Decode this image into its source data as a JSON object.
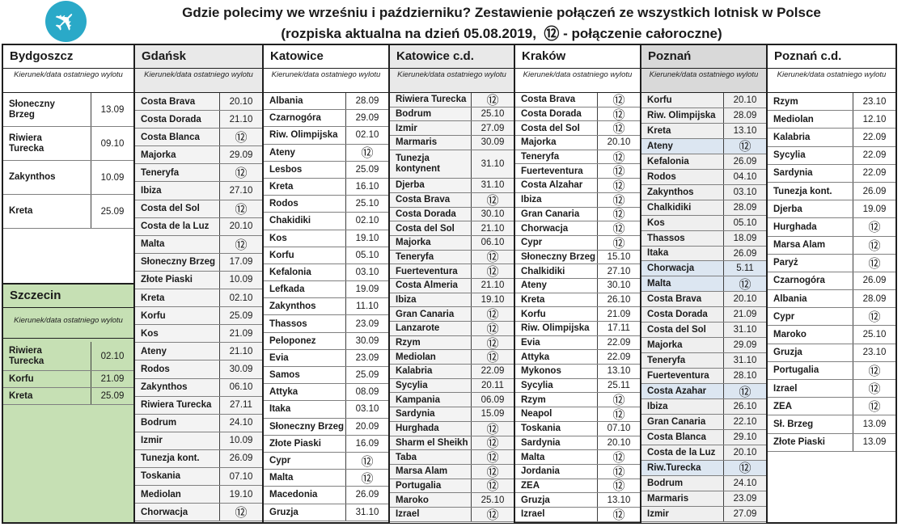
{
  "title": {
    "line1": "Gdzie polecimy we wrześniu i październiku? Zestawienie połączeń ze wszystkich lotnisk w Polsce",
    "line2_before": "(rozpiska aktualna na dzień 05.08.2019,",
    "line2_symbol": "⑫",
    "line2_after": "- połączenie całoroczne)"
  },
  "labels": {
    "subheader": "Kierunek/data ostatniego wylotu",
    "year_round_symbol": "⑫"
  },
  "icons": {
    "airplane": "✈"
  },
  "colors": {
    "badge_teal": "#2aa9c8",
    "szczecin_green": "#c6e0b4",
    "poznan_grey": "#d9d9d9",
    "light_grey": "#e9e9e9",
    "highlight_blue": "#dce6f1"
  },
  "columns": [
    {
      "id": "bydgoszcz-szczecin",
      "sections": [
        {
          "id": "bydgoszcz",
          "city": "Bydgoszcz",
          "variant": "white",
          "rows": [
            {
              "dest": "Słoneczny Brzeg",
              "date": "13.09"
            },
            {
              "dest": "Riwiera Turecka",
              "date": "09.10"
            },
            {
              "dest": "Zakynthos",
              "date": "10.09"
            },
            {
              "dest": "Kreta",
              "date": "25.09"
            }
          ]
        },
        {
          "id": "szczecin",
          "city": "Szczecin",
          "variant": "green",
          "rows": [
            {
              "dest": "Riwiera Turecka",
              "date": "02.10",
              "tall": true
            },
            {
              "dest": "Korfu",
              "date": "21.09"
            },
            {
              "dest": "Kreta",
              "date": "25.09"
            }
          ]
        }
      ]
    },
    {
      "id": "gdansk",
      "sections": [
        {
          "id": "gdansk",
          "city": "Gdańsk",
          "variant": "greylight",
          "rows": [
            {
              "dest": "Costa Brava",
              "date": "20.10"
            },
            {
              "dest": "Costa Dorada",
              "date": "21.10"
            },
            {
              "dest": "Costa Blanca",
              "date": "⑫"
            },
            {
              "dest": "Majorka",
              "date": "29.09"
            },
            {
              "dest": "Teneryfa",
              "date": "⑫"
            },
            {
              "dest": "Ibiza",
              "date": "27.10"
            },
            {
              "dest": "Costa del Sol",
              "date": "⑫"
            },
            {
              "dest": "Costa de la Luz",
              "date": "20.10"
            },
            {
              "dest": "Malta",
              "date": "⑫"
            },
            {
              "dest": "Słoneczny Brzeg",
              "date": "17.09"
            },
            {
              "dest": "Złote Piaski",
              "date": "10.09"
            },
            {
              "dest": "Kreta",
              "date": "02.10"
            },
            {
              "dest": "Korfu",
              "date": "25.09"
            },
            {
              "dest": "Kos",
              "date": "21.09"
            },
            {
              "dest": "Ateny",
              "date": "21.10"
            },
            {
              "dest": "Rodos",
              "date": "30.09"
            },
            {
              "dest": "Zakynthos",
              "date": "06.10"
            },
            {
              "dest": "Riwiera Turecka",
              "date": "27.11"
            },
            {
              "dest": "Bodrum",
              "date": "24.10"
            },
            {
              "dest": "Izmir",
              "date": "10.09"
            },
            {
              "dest": "Tunezja kont.",
              "date": "26.09"
            },
            {
              "dest": "Toskania",
              "date": "07.10"
            },
            {
              "dest": "Mediolan",
              "date": "19.10"
            },
            {
              "dest": "Chorwacja",
              "date": "⑫"
            }
          ]
        }
      ]
    },
    {
      "id": "katowice",
      "sections": [
        {
          "id": "katowice",
          "city": "Katowice",
          "variant": "white",
          "rows": [
            {
              "dest": "Albania",
              "date": "28.09"
            },
            {
              "dest": "Czarnogóra",
              "date": "29.09"
            },
            {
              "dest": "Riw. Olimpijska",
              "date": "02.10"
            },
            {
              "dest": "Ateny",
              "date": "⑫"
            },
            {
              "dest": "Lesbos",
              "date": "25.09"
            },
            {
              "dest": "Kreta",
              "date": "16.10"
            },
            {
              "dest": "Rodos",
              "date": "25.10"
            },
            {
              "dest": "Chakidiki",
              "date": "02.10"
            },
            {
              "dest": "Kos",
              "date": "19.10"
            },
            {
              "dest": "Korfu",
              "date": "05.10"
            },
            {
              "dest": "Kefalonia",
              "date": "03.10"
            },
            {
              "dest": "Lefkada",
              "date": "19.09"
            },
            {
              "dest": "Zakynthos",
              "date": "11.10"
            },
            {
              "dest": "Thassos",
              "date": "23.09"
            },
            {
              "dest": "Peloponez",
              "date": "30.09"
            },
            {
              "dest": "Evia",
              "date": "23.09"
            },
            {
              "dest": "Samos",
              "date": "25.09"
            },
            {
              "dest": "Attyka",
              "date": "08.09"
            },
            {
              "dest": "Itaka",
              "date": "03.10"
            },
            {
              "dest": "Słoneczny Brzeg",
              "date": "20.09"
            },
            {
              "dest": "Złote Piaski",
              "date": "16.09"
            },
            {
              "dest": "Cypr",
              "date": "⑫"
            },
            {
              "dest": "Malta",
              "date": "⑫"
            },
            {
              "dest": "Macedonia",
              "date": "26.09"
            },
            {
              "dest": "Gruzja",
              "date": "31.10"
            }
          ]
        }
      ]
    },
    {
      "id": "katowice-cd",
      "sections": [
        {
          "id": "katowice-cd",
          "city": "Katowice c.d.",
          "variant": "greylight",
          "rows": [
            {
              "dest": "Riwiera Turecka",
              "date": "⑫"
            },
            {
              "dest": "Bodrum",
              "date": "25.10"
            },
            {
              "dest": "Izmir",
              "date": "27.09"
            },
            {
              "dest": "Marmaris",
              "date": "30.09"
            },
            {
              "dest": "Tunezja kontynent",
              "date": "31.10",
              "tall": true
            },
            {
              "dest": "Djerba",
              "date": "31.10"
            },
            {
              "dest": "Costa Brava",
              "date": "⑫"
            },
            {
              "dest": "Costa Dorada",
              "date": "30.10"
            },
            {
              "dest": "Costa del Sol",
              "date": "21.10"
            },
            {
              "dest": "Majorka",
              "date": "06.10"
            },
            {
              "dest": "Teneryfa",
              "date": "⑫"
            },
            {
              "dest": "Fuerteventura",
              "date": "⑫"
            },
            {
              "dest": "Costa Almeria",
              "date": "21.10"
            },
            {
              "dest": "Ibiza",
              "date": "19.10"
            },
            {
              "dest": "Gran Canaria",
              "date": "⑫"
            },
            {
              "dest": "Lanzarote",
              "date": "⑫"
            },
            {
              "dest": "Rzym",
              "date": "⑫"
            },
            {
              "dest": "Mediolan",
              "date": "⑫"
            },
            {
              "dest": "Kalabria",
              "date": "22.09"
            },
            {
              "dest": "Sycylia",
              "date": "20.11"
            },
            {
              "dest": "Kampania",
              "date": "06.09"
            },
            {
              "dest": "Sardynia",
              "date": "15.09"
            },
            {
              "dest": "Hurghada",
              "date": "⑫"
            },
            {
              "dest": "Sharm el Sheikh",
              "date": "⑫"
            },
            {
              "dest": "Taba",
              "date": "⑫"
            },
            {
              "dest": "Marsa Alam",
              "date": "⑫"
            },
            {
              "dest": "Portugalia",
              "date": "⑫"
            },
            {
              "dest": "Maroko",
              "date": "25.10"
            },
            {
              "dest": "Izrael",
              "date": "⑫"
            }
          ]
        }
      ]
    },
    {
      "id": "krakow",
      "sections": [
        {
          "id": "krakow",
          "city": "Kraków",
          "variant": "white",
          "rows": [
            {
              "dest": "Costa Brava",
              "date": "⑫"
            },
            {
              "dest": "Costa Dorada",
              "date": "⑫"
            },
            {
              "dest": "Costa del Sol",
              "date": "⑫"
            },
            {
              "dest": "Majorka",
              "date": "20.10"
            },
            {
              "dest": "Teneryfa",
              "date": "⑫"
            },
            {
              "dest": "Fuerteventura",
              "date": "⑫"
            },
            {
              "dest": "Costa Alzahar",
              "date": "⑫"
            },
            {
              "dest": "Ibiza",
              "date": "⑫"
            },
            {
              "dest": "Gran Canaria",
              "date": "⑫"
            },
            {
              "dest": "Chorwacja",
              "date": "⑫"
            },
            {
              "dest": "Cypr",
              "date": "⑫"
            },
            {
              "dest": "Słoneczny Brzeg",
              "date": "15.10"
            },
            {
              "dest": "Chalkidiki",
              "date": "27.10"
            },
            {
              "dest": "Ateny",
              "date": "30.10"
            },
            {
              "dest": "Kreta",
              "date": "26.10"
            },
            {
              "dest": "Korfu",
              "date": "21.09"
            },
            {
              "dest": "Riw. Olimpijska",
              "date": "17.11"
            },
            {
              "dest": "Evia",
              "date": "22.09"
            },
            {
              "dest": "Attyka",
              "date": "22.09"
            },
            {
              "dest": "Mykonos",
              "date": "13.10"
            },
            {
              "dest": "Sycylia",
              "date": "25.11"
            },
            {
              "dest": "Rzym",
              "date": "⑫"
            },
            {
              "dest": "Neapol",
              "date": "⑫"
            },
            {
              "dest": "Toskania",
              "date": "07.10"
            },
            {
              "dest": "Sardynia",
              "date": "20.10"
            },
            {
              "dest": "Malta",
              "date": "⑫"
            },
            {
              "dest": "Jordania",
              "date": "⑫"
            },
            {
              "dest": "ZEA",
              "date": "⑫"
            },
            {
              "dest": "Gruzja",
              "date": "13.10"
            },
            {
              "dest": "Izrael",
              "date": "⑫"
            }
          ]
        }
      ]
    },
    {
      "id": "poznan",
      "sections": [
        {
          "id": "poznan",
          "city": "Poznań",
          "variant": "grey",
          "rows": [
            {
              "dest": "Korfu",
              "date": "20.10"
            },
            {
              "dest": "Riw. Olimpijska",
              "date": "28.09"
            },
            {
              "dest": "Kreta",
              "date": "13.10"
            },
            {
              "dest": "Ateny",
              "date": "⑫",
              "hl": true
            },
            {
              "dest": "Kefalonia",
              "date": "26.09"
            },
            {
              "dest": "Rodos",
              "date": "04.10"
            },
            {
              "dest": "Zakynthos",
              "date": "03.10"
            },
            {
              "dest": "Chalkidiki",
              "date": "28.09"
            },
            {
              "dest": "Kos",
              "date": "05.10"
            },
            {
              "dest": "Thassos",
              "date": "18.09"
            },
            {
              "dest": "Itaka",
              "date": "26.09"
            },
            {
              "dest": "Chorwacja",
              "date": "5.11",
              "hl": true
            },
            {
              "dest": "Malta",
              "date": "⑫",
              "hl": true
            },
            {
              "dest": "Costa Brava",
              "date": "20.10"
            },
            {
              "dest": "Costa Dorada",
              "date": "21.09"
            },
            {
              "dest": "Costa del Sol",
              "date": "31.10"
            },
            {
              "dest": "Majorka",
              "date": "29.09"
            },
            {
              "dest": "Teneryfa",
              "date": "31.10"
            },
            {
              "dest": "Fuerteventura",
              "date": "28.10"
            },
            {
              "dest": "Costa Azahar",
              "date": "⑫",
              "hl": true
            },
            {
              "dest": "Ibiza",
              "date": "26.10"
            },
            {
              "dest": "Gran Canaria",
              "date": "22.10"
            },
            {
              "dest": "Costa Blanca",
              "date": "29.10"
            },
            {
              "dest": "Costa de la Luz",
              "date": "20.10"
            },
            {
              "dest": "Riw.Turecka",
              "date": "⑫",
              "hl": true
            },
            {
              "dest": "Bodrum",
              "date": "24.10"
            },
            {
              "dest": "Marmaris",
              "date": "23.09"
            },
            {
              "dest": "Izmir",
              "date": "27.09"
            }
          ]
        }
      ]
    },
    {
      "id": "poznan-cd",
      "sections": [
        {
          "id": "poznan-cd",
          "city": "Poznań c.d.",
          "variant": "white",
          "rows": [
            {
              "dest": "Rzym",
              "date": "23.10"
            },
            {
              "dest": "Mediolan",
              "date": "12.10"
            },
            {
              "dest": "Kalabria",
              "date": "22.09"
            },
            {
              "dest": "Sycylia",
              "date": "22.09"
            },
            {
              "dest": "Sardynia",
              "date": "22.09"
            },
            {
              "dest": "Tunezja kont.",
              "date": "26.09"
            },
            {
              "dest": "Djerba",
              "date": "19.09"
            },
            {
              "dest": "Hurghada",
              "date": "⑫"
            },
            {
              "dest": "Marsa Alam",
              "date": "⑫"
            },
            {
              "dest": "Paryż",
              "date": "⑫"
            },
            {
              "dest": "Czarnogóra",
              "date": "26.09"
            },
            {
              "dest": "Albania",
              "date": "28.09"
            },
            {
              "dest": "Cypr",
              "date": "⑫"
            },
            {
              "dest": "Maroko",
              "date": "25.10"
            },
            {
              "dest": "Gruzja",
              "date": "23.10"
            },
            {
              "dest": "Portugalia",
              "date": "⑫"
            },
            {
              "dest": "Izrael",
              "date": "⑫"
            },
            {
              "dest": "ZEA",
              "date": "⑫"
            },
            {
              "dest": "Sł. Brzeg",
              "date": "13.09"
            },
            {
              "dest": "Złote Piaski",
              "date": "13.09"
            }
          ]
        }
      ]
    }
  ]
}
